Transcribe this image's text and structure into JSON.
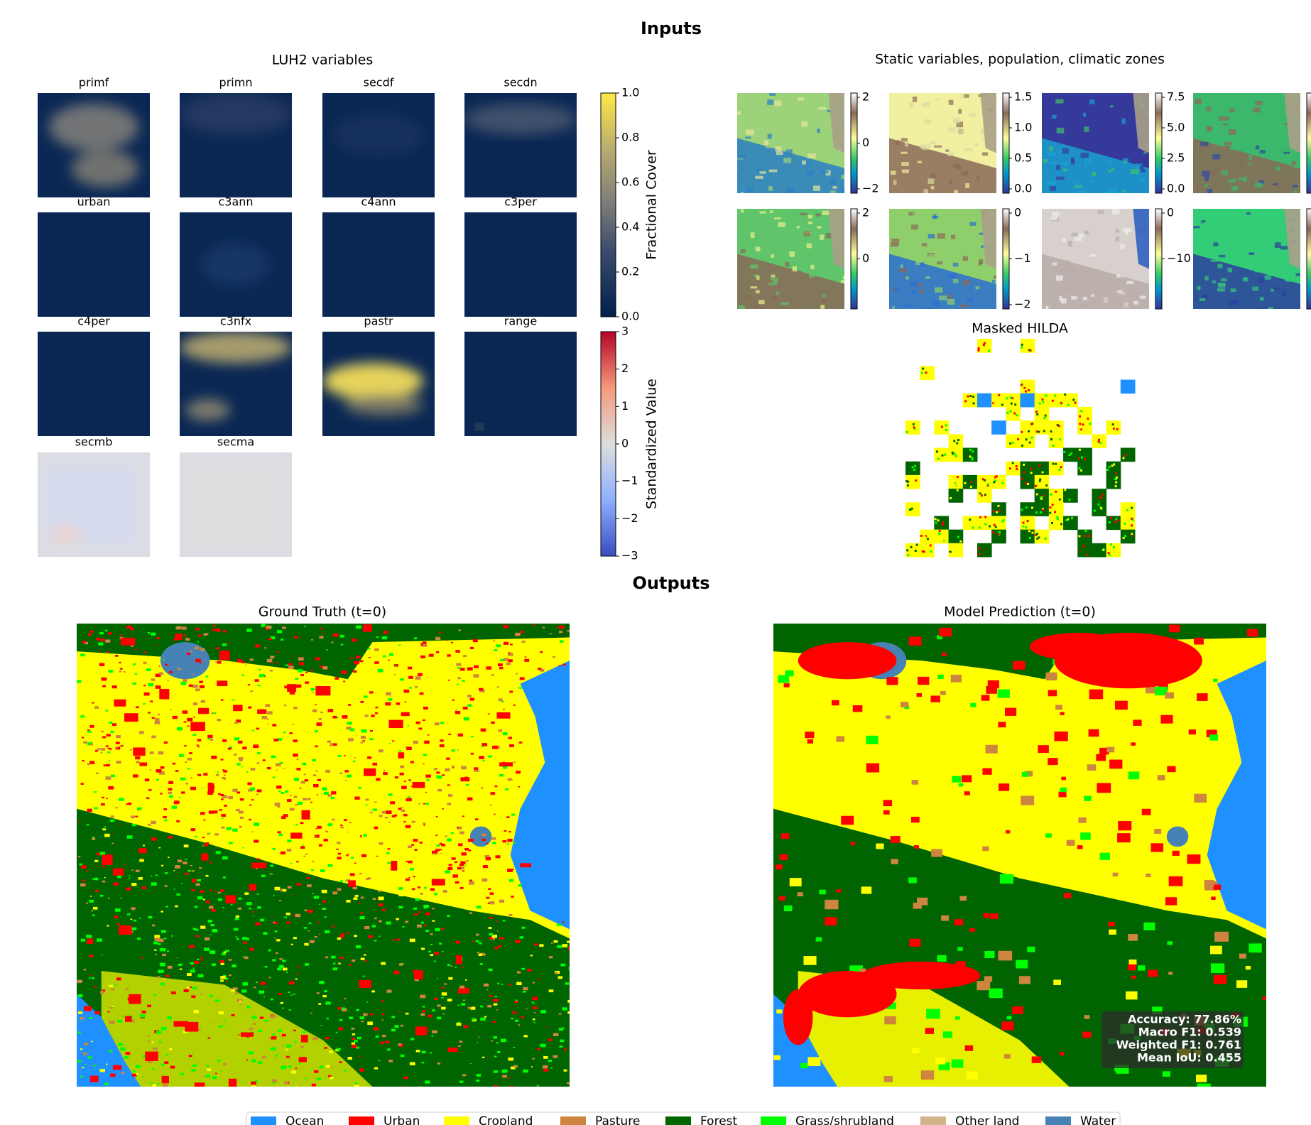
{
  "figure": {
    "inputs_title": "Inputs",
    "outputs_title": "Outputs"
  },
  "luh2": {
    "title": "LUH2 variables",
    "panels": [
      "primf",
      "primn",
      "secdf",
      "secdn",
      "urban",
      "c3ann",
      "c4ann",
      "c3per",
      "c4per",
      "c3nfx",
      "pastr",
      "range",
      "secmb",
      "secma"
    ],
    "colorbars": [
      {
        "label": "Fractional Cover",
        "ticks": [
          "1.0",
          "0.8",
          "0.6",
          "0.4",
          "0.2",
          "0.0"
        ]
      },
      {
        "label": "Standardized Value",
        "ticks": [
          "3",
          "2",
          "1",
          "0",
          "−1",
          "−2",
          "−3"
        ]
      }
    ]
  },
  "static": {
    "title": "Static variables, population, climatic zones",
    "rows": [
      [
        [
          "2",
          "0",
          "−2"
        ],
        [
          "1.5",
          "1.0",
          "0.5",
          "0.0"
        ],
        [
          "7.5",
          "5.0",
          "2.5",
          "0.0"
        ]
      ],
      [
        [
          "2",
          "0"
        ],
        [
          "0",
          "−1",
          "−2"
        ],
        [
          "0",
          "−10"
        ]
      ]
    ]
  },
  "hilda": {
    "title": "Masked HILDA"
  },
  "outputs": {
    "ground_truth": {
      "title": "Ground Truth (t=0)"
    },
    "prediction": {
      "title": "Model Prediction (t=0)",
      "metrics": [
        "Accuracy: 77.86%",
        "Macro F1: 0.539",
        "Weighted F1: 0.761",
        "Mean IoU: 0.455"
      ]
    }
  },
  "legend": [
    {
      "label": "Ocean",
      "color": "#1e90ff"
    },
    {
      "label": "Urban",
      "color": "#ff0000"
    },
    {
      "label": "Cropland",
      "color": "#ffff00"
    },
    {
      "label": "Pasture",
      "color": "#cd853f"
    },
    {
      "label": "Forest",
      "color": "#006400"
    },
    {
      "label": "Grass/shrubland",
      "color": "#00ff00"
    },
    {
      "label": "Other land",
      "color": "#d2b48c"
    },
    {
      "label": "Water",
      "color": "#4682b4"
    }
  ]
}
